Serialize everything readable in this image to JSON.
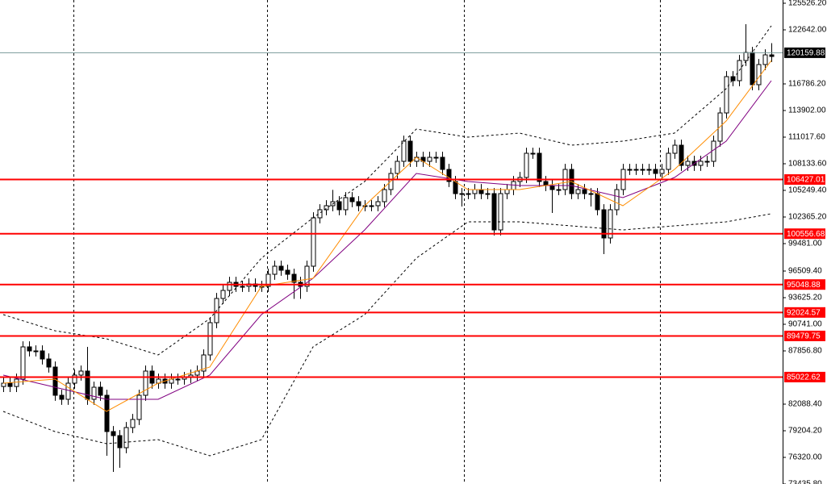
{
  "chart_data": {
    "type": "candlestick",
    "ylim": [
      73437,
      125876
    ],
    "yticks": [
      {
        "value": 125526.2,
        "label": "125526.20"
      },
      {
        "value": 122642,
        "label": "122642.00"
      },
      {
        "value": 116786.2,
        "label": "116786.20"
      },
      {
        "value": 113902,
        "label": "113902.00"
      },
      {
        "value": 111017.6,
        "label": "111017.60"
      },
      {
        "value": 108133.6,
        "label": "108133.60"
      },
      {
        "value": 105249.4,
        "label": "105249.40"
      },
      {
        "value": 102365.2,
        "label": "102365.20"
      },
      {
        "value": 99481,
        "label": "99481.00"
      },
      {
        "value": 96509.4,
        "label": "96509.40"
      },
      {
        "value": 93625.2,
        "label": "93625.20"
      },
      {
        "value": 90741,
        "label": "90741.00"
      },
      {
        "value": 87856.8,
        "label": "87856.80"
      },
      {
        "value": 82088.4,
        "label": "82088.40"
      },
      {
        "value": 79204.2,
        "label": "79204.20"
      },
      {
        "value": 76320,
        "label": "76320.00"
      },
      {
        "value": 73435.8,
        "label": "73435.80"
      }
    ],
    "up_color": "#ffffff",
    "down_color": "#000000",
    "open": [
      84000,
      84361,
      84000,
      84800,
      88294,
      87857,
      87857,
      86983,
      86109,
      83050,
      82613,
      84361,
      85235,
      85672,
      82613,
      83924,
      83050,
      79117,
      78680,
      77369,
      79554,
      80428,
      83050,
      85672,
      84361,
      84798,
      84361,
      84798,
      84798,
      84973,
      85235,
      85672,
      87420,
      90916,
      93538,
      94412,
      95286,
      94849,
      94849,
      95111,
      94849,
      94849,
      96160,
      97034,
      96597,
      96160,
      95286,
      94849,
      97034,
      102278,
      103152,
      103589,
      104026,
      103152,
      104463,
      104026,
      103589,
      103589,
      103589,
      104026,
      105337,
      107085,
      108396,
      110581,
      108396,
      108833,
      108396,
      108833,
      108833,
      107522,
      106211,
      104900,
      104900,
      104900,
      105337,
      104900,
      104900,
      100967,
      104900,
      105337,
      106211,
      106648,
      109270,
      109270,
      106211,
      105774,
      105337,
      105337,
      107522,
      104900,
      105337,
      104900,
      104900,
      103152,
      100093,
      103152,
      105337,
      107522,
      107522,
      107522,
      107522,
      107522,
      107085,
      107522,
      109270,
      110144,
      107959,
      108396,
      107959,
      108396,
      108396,
      110581,
      113640,
      117573,
      117136,
      119321,
      120195,
      116699,
      118884,
      119933
    ],
    "high": [
      84961,
      84961,
      85400,
      88894,
      88894,
      88457,
      88457,
      87583,
      86709,
      83650,
      84961,
      85835,
      86272,
      88294,
      84524,
      84524,
      83650,
      79717,
      79280,
      80154,
      81028,
      83650,
      86272,
      86272,
      85398,
      85398,
      85398,
      85398,
      85573,
      85835,
      86272,
      88020,
      91516,
      94138,
      95012,
      95886,
      95886,
      95449,
      95711,
      95711,
      95449,
      96760,
      97634,
      97634,
      97197,
      96760,
      95886,
      97634,
      102878,
      103752,
      104189,
      105300,
      104626,
      105063,
      105063,
      104626,
      104189,
      104189,
      104626,
      105937,
      107685,
      108996,
      111181,
      111181,
      109433,
      109433,
      109433,
      109433,
      109433,
      108122,
      106811,
      105500,
      105500,
      105937,
      105937,
      105500,
      105500,
      105500,
      105937,
      106811,
      107248,
      109870,
      109870,
      109870,
      106811,
      106374,
      105937,
      108122,
      108122,
      105937,
      105937,
      105500,
      105500,
      103752,
      103752,
      105937,
      108122,
      108122,
      108122,
      108122,
      108122,
      108122,
      108122,
      109870,
      110744,
      110744,
      108996,
      108996,
      108996,
      108996,
      111181,
      114240,
      118173,
      118173,
      119921,
      123254,
      120795,
      119484,
      120533,
      121200
    ],
    "low": [
      83400,
      83400,
      83400,
      84200,
      87257,
      87257,
      86383,
      85509,
      82450,
      82013,
      82013,
      83761,
      84635,
      82013,
      82013,
      82450,
      76500,
      74747,
      75200,
      76769,
      78954,
      79828,
      82450,
      83761,
      83761,
      83761,
      83761,
      84198,
      84198,
      84373,
      84635,
      85072,
      86820,
      90316,
      92938,
      93812,
      94249,
      94249,
      94249,
      94249,
      94249,
      94249,
      95560,
      95997,
      95560,
      93500,
      93500,
      94249,
      96434,
      101678,
      102552,
      102989,
      102552,
      102552,
      103426,
      102989,
      102989,
      102989,
      102989,
      103426,
      104737,
      106485,
      107796,
      107796,
      107796,
      107796,
      107796,
      108233,
      106922,
      105611,
      104300,
      103500,
      104300,
      104300,
      104300,
      104300,
      100367,
      100367,
      104300,
      104737,
      105611,
      106048,
      108670,
      105611,
      105174,
      102800,
      104737,
      104737,
      104300,
      104300,
      104300,
      103500,
      102552,
      98345,
      99493,
      102552,
      104737,
      106922,
      106922,
      106922,
      106922,
      106485,
      106485,
      106922,
      108670,
      107359,
      107359,
      107359,
      107359,
      107796,
      107796,
      109981,
      113040,
      116536,
      116536,
      118721,
      116099,
      116099,
      118284,
      119158
    ],
    "close": [
      84361,
      84000,
      84800,
      88294,
      87857,
      87857,
      86983,
      86109,
      83050,
      82613,
      84361,
      85235,
      85672,
      82613,
      83924,
      83050,
      79117,
      78680,
      77369,
      79554,
      80428,
      83050,
      85672,
      84361,
      84798,
      84361,
      84798,
      84798,
      84973,
      85235,
      85672,
      87420,
      90916,
      93538,
      94412,
      95286,
      94849,
      94849,
      95111,
      94849,
      94849,
      96160,
      97034,
      96597,
      96160,
      95286,
      94849,
      97034,
      102278,
      103152,
      103589,
      104026,
      103152,
      104463,
      104026,
      103589,
      103589,
      103589,
      104026,
      105337,
      107085,
      108396,
      110581,
      108396,
      108833,
      108396,
      108833,
      108833,
      107522,
      106211,
      104900,
      104900,
      104900,
      105337,
      104900,
      104900,
      100967,
      104900,
      105337,
      106211,
      106648,
      109270,
      109270,
      106211,
      105774,
      105337,
      105337,
      107522,
      104900,
      105337,
      104900,
      104900,
      103152,
      100093,
      103152,
      105337,
      107522,
      107522,
      107522,
      107522,
      107522,
      107085,
      107522,
      109270,
      110144,
      107959,
      108396,
      107959,
      108396,
      108396,
      110581,
      113640,
      117573,
      117136,
      119321,
      120195,
      116699,
      118884,
      119933,
      119758
    ],
    "indicators": [
      {
        "color": "#000000",
        "dashed": true,
        "x": [
          0,
          8,
          16,
          24,
          32,
          40,
          48,
          56,
          64,
          72,
          80,
          88,
          96,
          104,
          112,
          119
        ],
        "values": [
          91790,
          90042,
          89170,
          87420,
          91353,
          97908,
          102278,
          106211,
          111892,
          111017,
          111455,
          110144,
          110581,
          111455,
          116262,
          123079
        ]
      },
      {
        "color": "#000000",
        "dashed": true,
        "x": [
          0,
          8,
          16,
          24,
          32,
          40,
          48,
          56,
          64,
          72,
          80,
          88,
          96,
          104,
          112,
          119
        ],
        "values": [
          81302,
          79117,
          77806,
          78243,
          76495,
          78243,
          88294,
          91790,
          97908,
          101841,
          101841,
          101404,
          100967,
          101404,
          101841,
          102715
        ]
      },
      {
        "color": "#800080",
        "dashed": false,
        "x": [
          0,
          8,
          16,
          24,
          32,
          40,
          48,
          56,
          64,
          72,
          80,
          88,
          96,
          104,
          112,
          119
        ],
        "values": [
          85235,
          83924,
          82613,
          82613,
          85235,
          91790,
          95723,
          100967,
          107085,
          106211,
          105774,
          105774,
          104463,
          106648,
          110581,
          117136
        ]
      },
      {
        "color": "#ff8c00",
        "dashed": false,
        "x": [
          0,
          8,
          16,
          24,
          32,
          40,
          48,
          56,
          64,
          72,
          80,
          88,
          96,
          104,
          112,
          119
        ],
        "values": [
          84361,
          84798,
          81302,
          84361,
          86109,
          94849,
          95723,
          103589,
          108833,
          105337,
          105337,
          106211,
          103589,
          107522,
          112766,
          119321
        ]
      }
    ],
    "levels": {
      "color": "#ff0000",
      "values": [
        106427.01,
        100556.68,
        95048.88,
        92024.57,
        89479.75,
        85022.62
      ]
    },
    "current_price": {
      "color": "#000000",
      "line_color": "#7a9a9a",
      "value": 120159.88
    }
  }
}
